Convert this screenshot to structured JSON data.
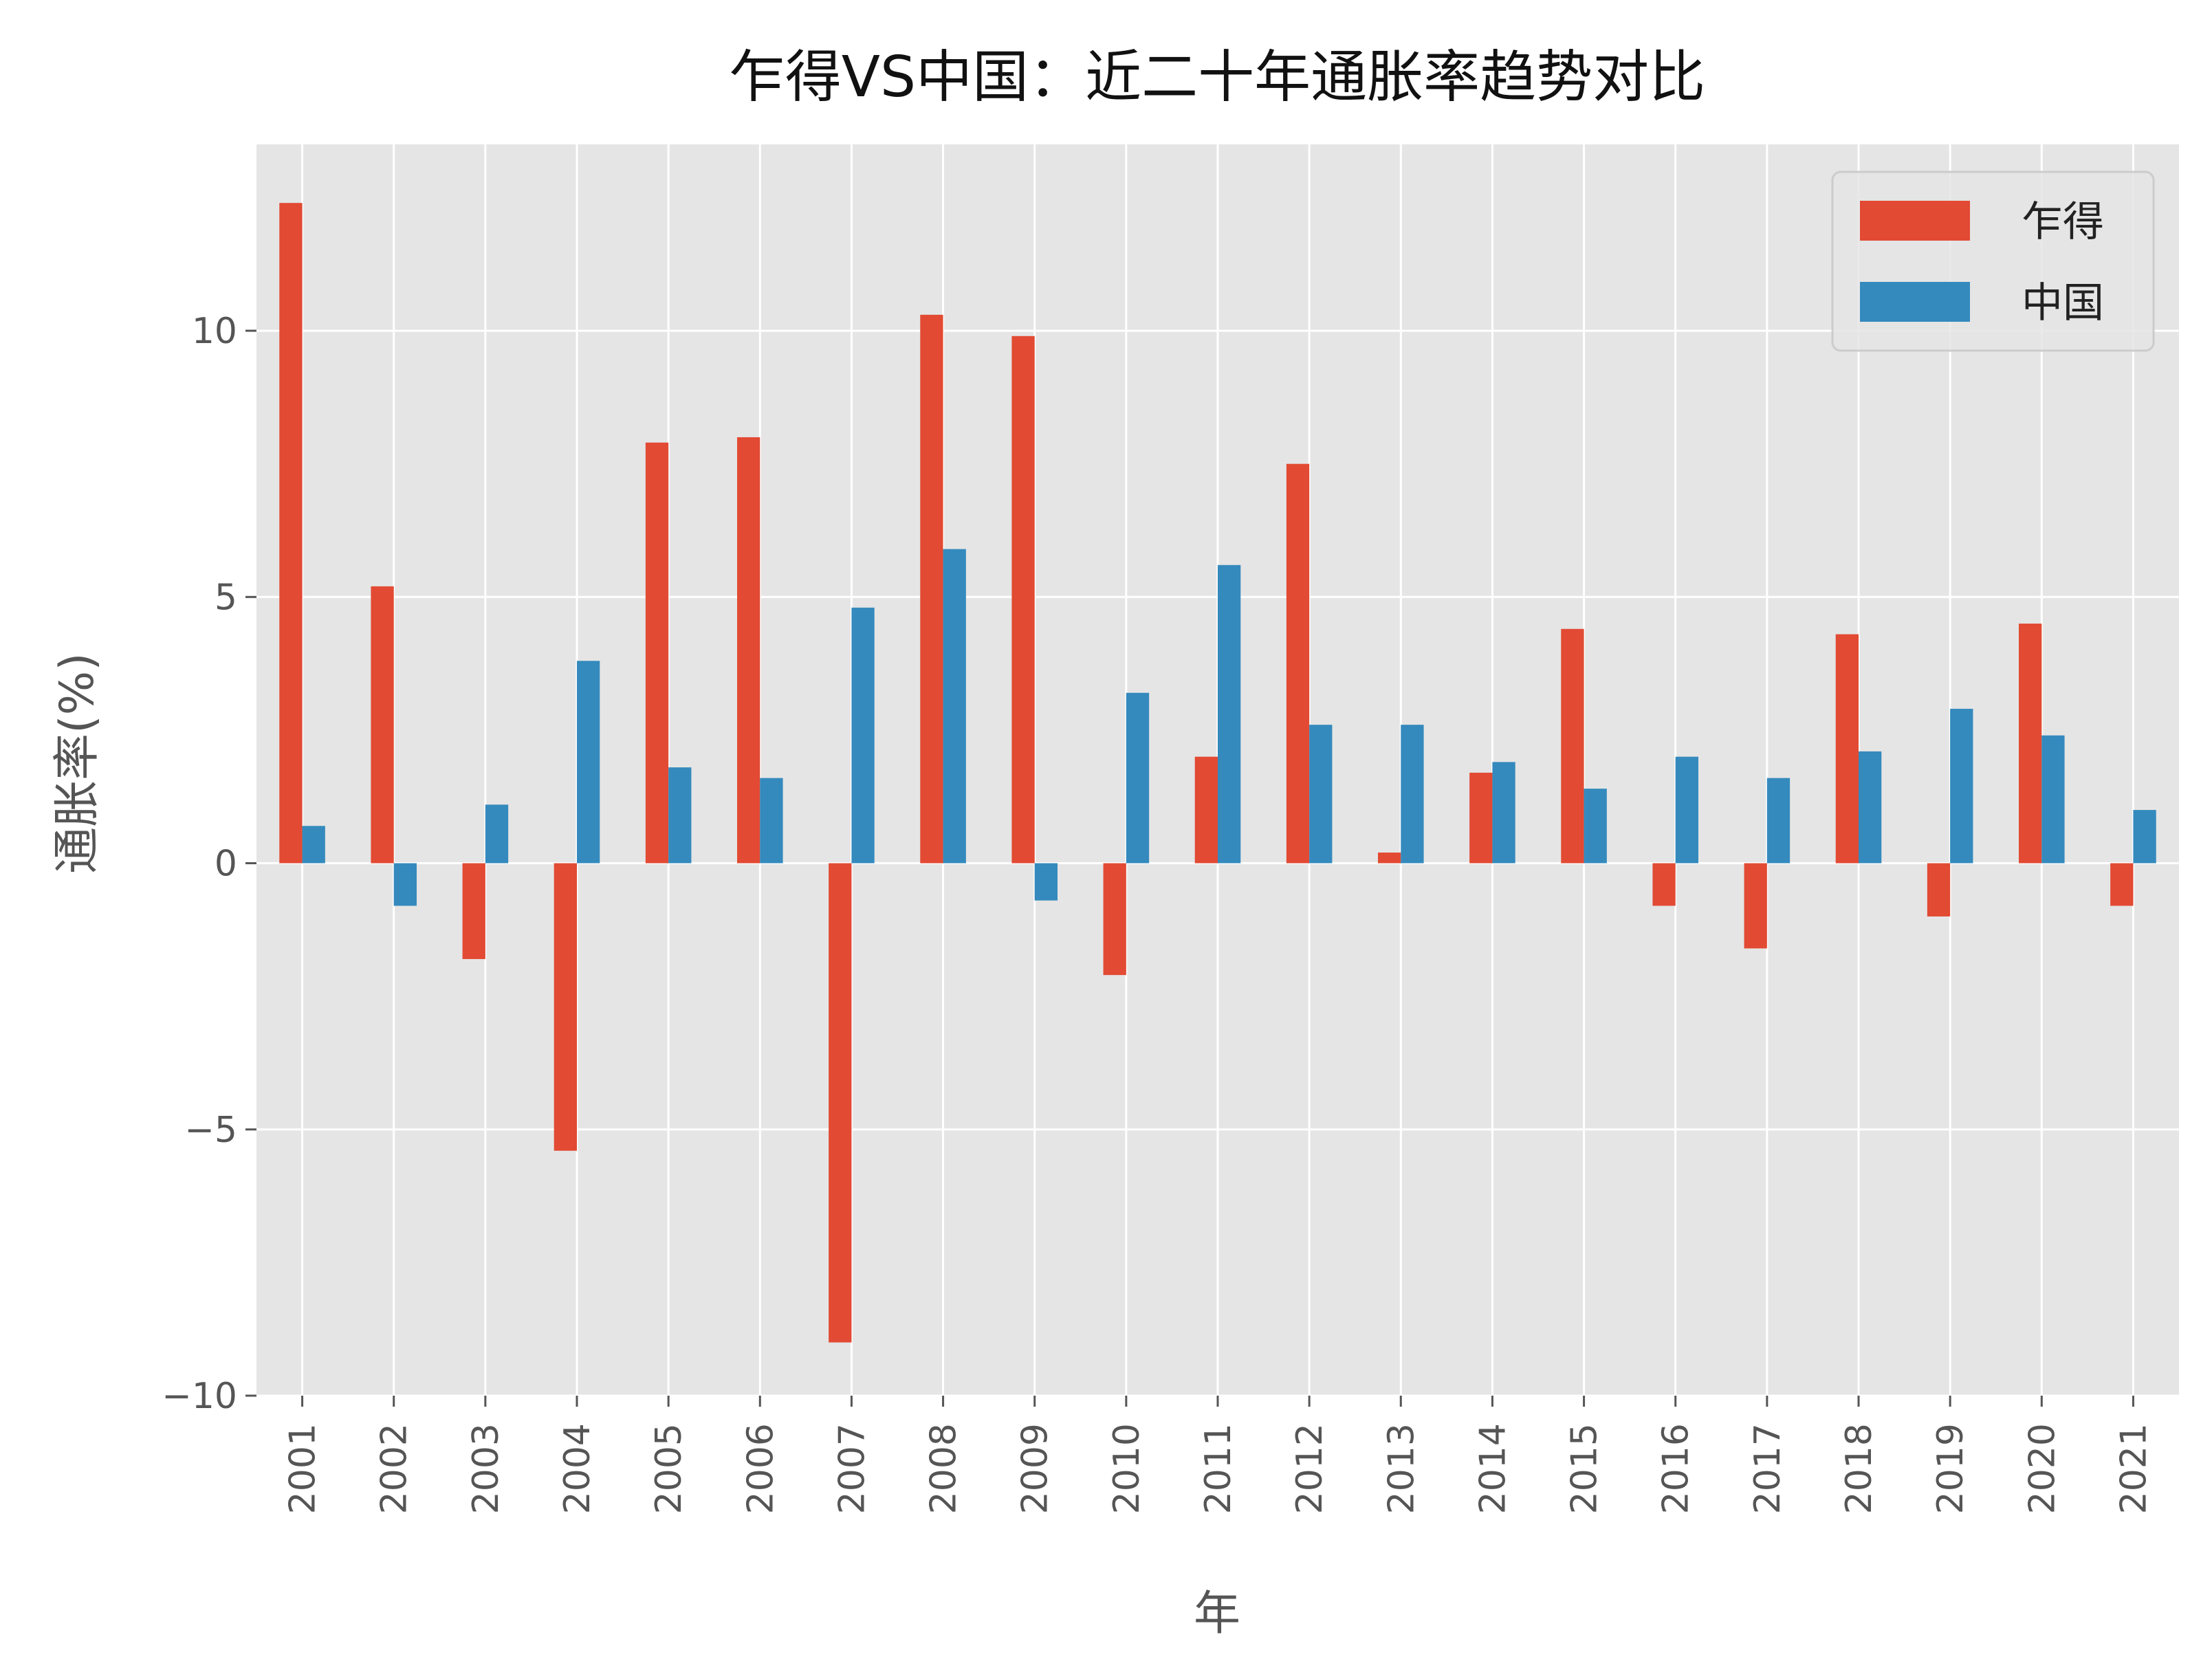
{
  "chart_data": {
    "type": "bar",
    "title": "乍得VS中国：近二十年通胀率趋势对比",
    "xlabel": "年",
    "ylabel": "通胀率(%)",
    "ylim": [
      -10,
      13.5
    ],
    "yticks": [
      -10,
      -5,
      0,
      5,
      10
    ],
    "ytick_labels": [
      "−10",
      "−5",
      "0",
      "5",
      "10"
    ],
    "grid": true,
    "legend_position": "top-right",
    "categories": [
      "2001",
      "2002",
      "2003",
      "2004",
      "2005",
      "2006",
      "2007",
      "2008",
      "2009",
      "2010",
      "2011",
      "2012",
      "2013",
      "2014",
      "2015",
      "2016",
      "2017",
      "2018",
      "2019",
      "2020",
      "2021"
    ],
    "series": [
      {
        "name": "乍得",
        "color": "#e24a33",
        "values": [
          12.4,
          5.2,
          -1.8,
          -5.4,
          7.9,
          8.0,
          -9.0,
          10.3,
          9.9,
          -2.1,
          2.0,
          7.5,
          0.2,
          1.7,
          4.4,
          -0.8,
          -1.6,
          4.3,
          -1.0,
          4.5,
          -0.8
        ]
      },
      {
        "name": "中国",
        "color": "#348abd",
        "values": [
          0.7,
          -0.8,
          1.1,
          3.8,
          1.8,
          1.6,
          4.8,
          5.9,
          -0.7,
          3.2,
          5.6,
          2.6,
          2.6,
          1.9,
          1.4,
          2.0,
          1.6,
          2.1,
          2.9,
          2.4,
          1.0
        ]
      }
    ],
    "colors": {
      "plot_background": "#e5e5e5",
      "grid": "#ffffff",
      "tick": "#555555"
    }
  }
}
